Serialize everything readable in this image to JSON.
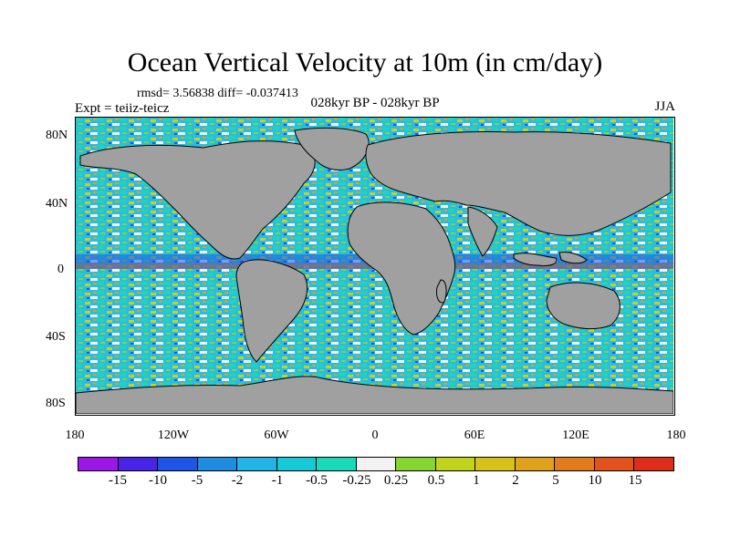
{
  "title": "Ocean Vertical Velocity at 10m (in cm/day)",
  "stats": "rmsd= 3.56838 diff= -0.037413",
  "expt": "Expt = teiiz-teicz",
  "period": "028kyr BP - 028kyr BP",
  "season": "JJA",
  "y_axis_labels": [
    "80N",
    "40N",
    "0",
    "40S",
    "80S"
  ],
  "x_axis_labels": [
    "180",
    "120W",
    "60W",
    "0",
    "60E",
    "120E",
    "180"
  ],
  "colorbar": {
    "labels": [
      "-15",
      "-10",
      "-5",
      "-2",
      "-1",
      "-0.5",
      "-0.25",
      "0.25",
      "0.5",
      "1",
      "2",
      "5",
      "10",
      "15"
    ],
    "colors": [
      "#9a17e6",
      "#4a24e6",
      "#1f55e6",
      "#1f8ce0",
      "#22b4e6",
      "#17c8d6",
      "#18d9b8",
      "#f2f2f2",
      "#86d632",
      "#bfd51c",
      "#d8c21a",
      "#e0a21a",
      "#e27b1a",
      "#e2521c",
      "#dc2e18"
    ]
  },
  "map": {
    "land_color": "#a0a0a0",
    "coastline_color": "#000000"
  }
}
